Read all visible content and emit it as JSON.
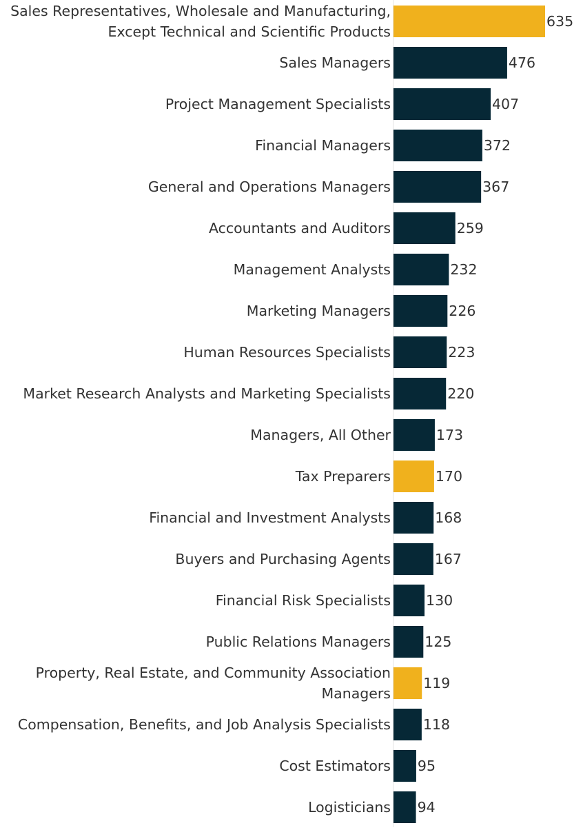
{
  "chart_data": {
    "type": "bar",
    "orientation": "horizontal",
    "title": "",
    "xlabel": "",
    "ylabel": "",
    "grid": false,
    "legend": "none",
    "xlim": [
      0,
      635
    ],
    "colors": {
      "default": "#062836",
      "highlight": "#f0b11d",
      "axis_line": "#e4e4e4"
    },
    "bars": [
      {
        "label": "Sales Representatives, Wholesale and Manufacturing, Except Technical and Scientific Products",
        "value": 635,
        "highlight": true
      },
      {
        "label": "Sales Managers",
        "value": 476,
        "highlight": false
      },
      {
        "label": "Project Management Specialists",
        "value": 407,
        "highlight": false
      },
      {
        "label": "Financial Managers",
        "value": 372,
        "highlight": false
      },
      {
        "label": "General and Operations Managers",
        "value": 367,
        "highlight": false
      },
      {
        "label": "Accountants and Auditors",
        "value": 259,
        "highlight": false
      },
      {
        "label": "Management Analysts",
        "value": 232,
        "highlight": false
      },
      {
        "label": "Marketing Managers",
        "value": 226,
        "highlight": false
      },
      {
        "label": "Human Resources Specialists",
        "value": 223,
        "highlight": false
      },
      {
        "label": "Market Research Analysts and Marketing Specialists",
        "value": 220,
        "highlight": false
      },
      {
        "label": "Managers, All Other",
        "value": 173,
        "highlight": false
      },
      {
        "label": "Tax Preparers",
        "value": 170,
        "highlight": true
      },
      {
        "label": "Financial and Investment Analysts",
        "value": 168,
        "highlight": false
      },
      {
        "label": "Buyers and Purchasing Agents",
        "value": 167,
        "highlight": false
      },
      {
        "label": "Financial Risk Specialists",
        "value": 130,
        "highlight": false
      },
      {
        "label": "Public Relations Managers",
        "value": 125,
        "highlight": false
      },
      {
        "label": "Property, Real Estate, and Community Association Managers",
        "value": 119,
        "highlight": true
      },
      {
        "label": "Compensation, Benefits, and Job Analysis Specialists",
        "value": 118,
        "highlight": false
      },
      {
        "label": "Cost Estimators",
        "value": 95,
        "highlight": false
      },
      {
        "label": "Logisticians",
        "value": 94,
        "highlight": false
      }
    ]
  }
}
